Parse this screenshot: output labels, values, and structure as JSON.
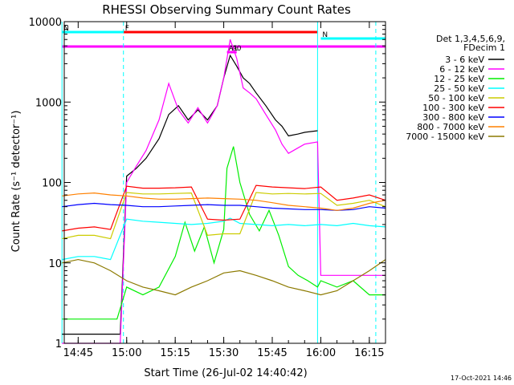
{
  "chart_data": {
    "type": "line",
    "title": "RHESSI Observing Summary Count Rates",
    "xlabel": "Start Time (26-Jul-02 14:40:42)",
    "ylabel": "Count Rate (s⁻¹ detector⁻¹)",
    "y_scale": "log",
    "ylim": [
      1,
      10000
    ],
    "xlim": [
      "14:40:42",
      "16:20:00"
    ],
    "x_ticks": [
      "14:45",
      "15:00",
      "15:15",
      "15:30",
      "15:45",
      "16:00",
      "16:15"
    ],
    "y_ticks": [
      "1",
      "10",
      "100",
      "1000",
      "10000"
    ],
    "grid": false,
    "legend_title": [
      "Det 1,3,4,5,6,9,",
      "FDecim 1"
    ],
    "legend_position": "right",
    "footer": "17-Oct-2021 14:46",
    "series": [
      {
        "name": "3 - 6 keV",
        "color": "#000000",
        "x": [
          "14:40",
          "14:55",
          "14:58",
          "15:00",
          "15:03",
          "15:06",
          "15:10",
          "15:13",
          "15:16",
          "15:19",
          "15:22",
          "15:25",
          "15:28",
          "15:30",
          "15:32",
          "15:34",
          "15:36",
          "15:38",
          "15:40",
          "15:43",
          "15:46",
          "15:48",
          "15:50",
          "15:53",
          "15:55",
          "15:59"
        ],
        "values": [
          1.3,
          1.3,
          1.3,
          120,
          150,
          200,
          350,
          700,
          900,
          600,
          800,
          600,
          900,
          2000,
          3800,
          2800,
          2000,
          1700,
          1300,
          900,
          600,
          500,
          380,
          400,
          420,
          440
        ]
      },
      {
        "name": "6 - 12 keV",
        "color": "#ff00ff",
        "x": [
          "14:40",
          "14:58",
          "15:00",
          "15:03",
          "15:06",
          "15:10",
          "15:13",
          "15:16",
          "15:19",
          "15:22",
          "15:25",
          "15:28",
          "15:30",
          "15:32",
          "15:34",
          "15:36",
          "15:38",
          "15:40",
          "15:43",
          "15:46",
          "15:48",
          "15:50",
          "15:53",
          "15:55",
          "15:59",
          "16:00",
          "16:01",
          "16:20"
        ],
        "values": [
          1,
          1,
          100,
          160,
          250,
          600,
          1700,
          800,
          550,
          850,
          550,
          900,
          2000,
          6000,
          3500,
          1500,
          1300,
          1100,
          700,
          450,
          300,
          230,
          270,
          300,
          320,
          7,
          7,
          7
        ]
      },
      {
        "name": "12 - 25 keV",
        "color": "#00ee00",
        "x": [
          "14:40",
          "14:57",
          "15:00",
          "15:05",
          "15:10",
          "15:15",
          "15:18",
          "15:21",
          "15:24",
          "15:27",
          "15:30",
          "15:31",
          "15:33",
          "15:35",
          "15:38",
          "15:41",
          "15:44",
          "15:47",
          "15:50",
          "15:53",
          "15:56",
          "15:59",
          "16:00",
          "16:05",
          "16:10",
          "16:15",
          "16:20"
        ],
        "values": [
          2,
          2,
          5,
          4,
          5,
          12,
          32,
          14,
          28,
          10,
          26,
          150,
          280,
          100,
          40,
          25,
          45,
          22,
          9,
          7,
          6,
          5,
          6,
          5,
          6,
          4,
          4
        ]
      },
      {
        "name": "25 - 50 keV",
        "color": "#00ffff",
        "x": [
          "14:40",
          "14:45",
          "14:50",
          "14:55",
          "15:00",
          "15:05",
          "15:10",
          "15:15",
          "15:20",
          "15:25",
          "15:30",
          "15:32",
          "15:35",
          "15:40",
          "15:45",
          "15:50",
          "15:55",
          "16:00",
          "16:05",
          "16:10",
          "16:15",
          "16:20"
        ],
        "values": [
          11,
          12,
          12,
          11,
          35,
          33,
          32,
          31,
          30,
          31,
          33,
          36,
          31,
          30,
          29,
          30,
          29,
          30,
          29,
          31,
          29,
          28
        ]
      },
      {
        "name": "50 - 100 keV",
        "color": "#cccc00",
        "x": [
          "14:40",
          "14:45",
          "14:50",
          "14:55",
          "15:00",
          "15:05",
          "15:10",
          "15:15",
          "15:20",
          "15:25",
          "15:30",
          "15:35",
          "15:40",
          "15:45",
          "15:50",
          "15:55",
          "16:00",
          "16:05",
          "16:10",
          "16:15",
          "16:20"
        ],
        "values": [
          20,
          22,
          22,
          20,
          75,
          72,
          72,
          73,
          74,
          22,
          23,
          23,
          75,
          72,
          73,
          72,
          73,
          52,
          55,
          60,
          50
        ]
      },
      {
        "name": "100 - 300 keV",
        "color": "#ff0000",
        "x": [
          "14:40",
          "14:45",
          "14:50",
          "14:55",
          "15:00",
          "15:05",
          "15:10",
          "15:15",
          "15:20",
          "15:25",
          "15:30",
          "15:35",
          "15:40",
          "15:45",
          "15:50",
          "15:55",
          "16:00",
          "16:05",
          "16:10",
          "16:15",
          "16:20"
        ],
        "values": [
          25,
          27,
          28,
          26,
          90,
          85,
          85,
          86,
          88,
          35,
          34,
          35,
          92,
          88,
          86,
          84,
          88,
          60,
          64,
          70,
          60
        ]
      },
      {
        "name": "300 - 800 keV",
        "color": "#0000ff",
        "x": [
          "14:40",
          "14:45",
          "14:50",
          "14:55",
          "15:00",
          "15:05",
          "15:10",
          "15:15",
          "15:20",
          "15:25",
          "15:30",
          "15:35",
          "15:40",
          "15:45",
          "15:50",
          "15:55",
          "16:00",
          "16:05",
          "16:10",
          "16:15",
          "16:20"
        ],
        "values": [
          50,
          53,
          55,
          53,
          52,
          50,
          50,
          51,
          52,
          53,
          52,
          52,
          50,
          48,
          47,
          46,
          46,
          45,
          46,
          50,
          48
        ]
      },
      {
        "name": "800 - 7000 keV",
        "color": "#ff8000",
        "x": [
          "14:40",
          "14:45",
          "14:50",
          "14:55",
          "15:00",
          "15:05",
          "15:10",
          "15:15",
          "15:20",
          "15:25",
          "15:30",
          "15:35",
          "15:40",
          "15:45",
          "15:50",
          "15:55",
          "16:00",
          "16:05",
          "16:10",
          "16:15",
          "16:20"
        ],
        "values": [
          68,
          72,
          74,
          70,
          68,
          64,
          62,
          62,
          63,
          64,
          63,
          62,
          60,
          56,
          52,
          50,
          48,
          45,
          48,
          55,
          60
        ]
      },
      {
        "name": "7000 - 15000 keV",
        "color": "#8c7a00",
        "x": [
          "14:40",
          "14:45",
          "14:50",
          "14:55",
          "15:00",
          "15:05",
          "15:10",
          "15:15",
          "15:20",
          "15:25",
          "15:30",
          "15:35",
          "15:40",
          "15:45",
          "15:50",
          "15:55",
          "16:00",
          "16:05",
          "16:10",
          "16:15",
          "16:20"
        ],
        "values": [
          10,
          11,
          10,
          8,
          6,
          5,
          4.5,
          4,
          5,
          6,
          7.5,
          8,
          7,
          6,
          5,
          4.5,
          4,
          4.5,
          6,
          8,
          11
        ]
      }
    ],
    "annotations": {
      "flags": [
        {
          "label": "N",
          "color": "#00ffff",
          "x_start": "14:40",
          "x_end": "15:00"
        },
        {
          "label": "N",
          "color": "#00ffff",
          "x_start": "16:00",
          "x_end": "16:20"
        },
        {
          "label": "F",
          "color": "#ff0000",
          "x_start": "14:59",
          "x_end": "15:59"
        },
        {
          "label": "",
          "color": "#ff00ff",
          "x_start": "14:40",
          "x_end": "16:20"
        },
        {
          "label": "A1",
          "color": "#ff00ff",
          "x_start": "15:31",
          "x_end": "15:32"
        },
        {
          "label": "A0",
          "color": "#ff00ff",
          "x_start": "15:32",
          "x_end": "15:34"
        }
      ],
      "boundaries": [
        {
          "x": "14:40",
          "color": "#00ffff",
          "style": "solid"
        },
        {
          "x": "14:59",
          "color": "#00ffff",
          "style": "dashed"
        },
        {
          "x": "15:59",
          "color": "#00ffff",
          "style": "solid"
        },
        {
          "x": "16:17",
          "color": "#00ffff",
          "style": "dashed"
        }
      ]
    }
  }
}
